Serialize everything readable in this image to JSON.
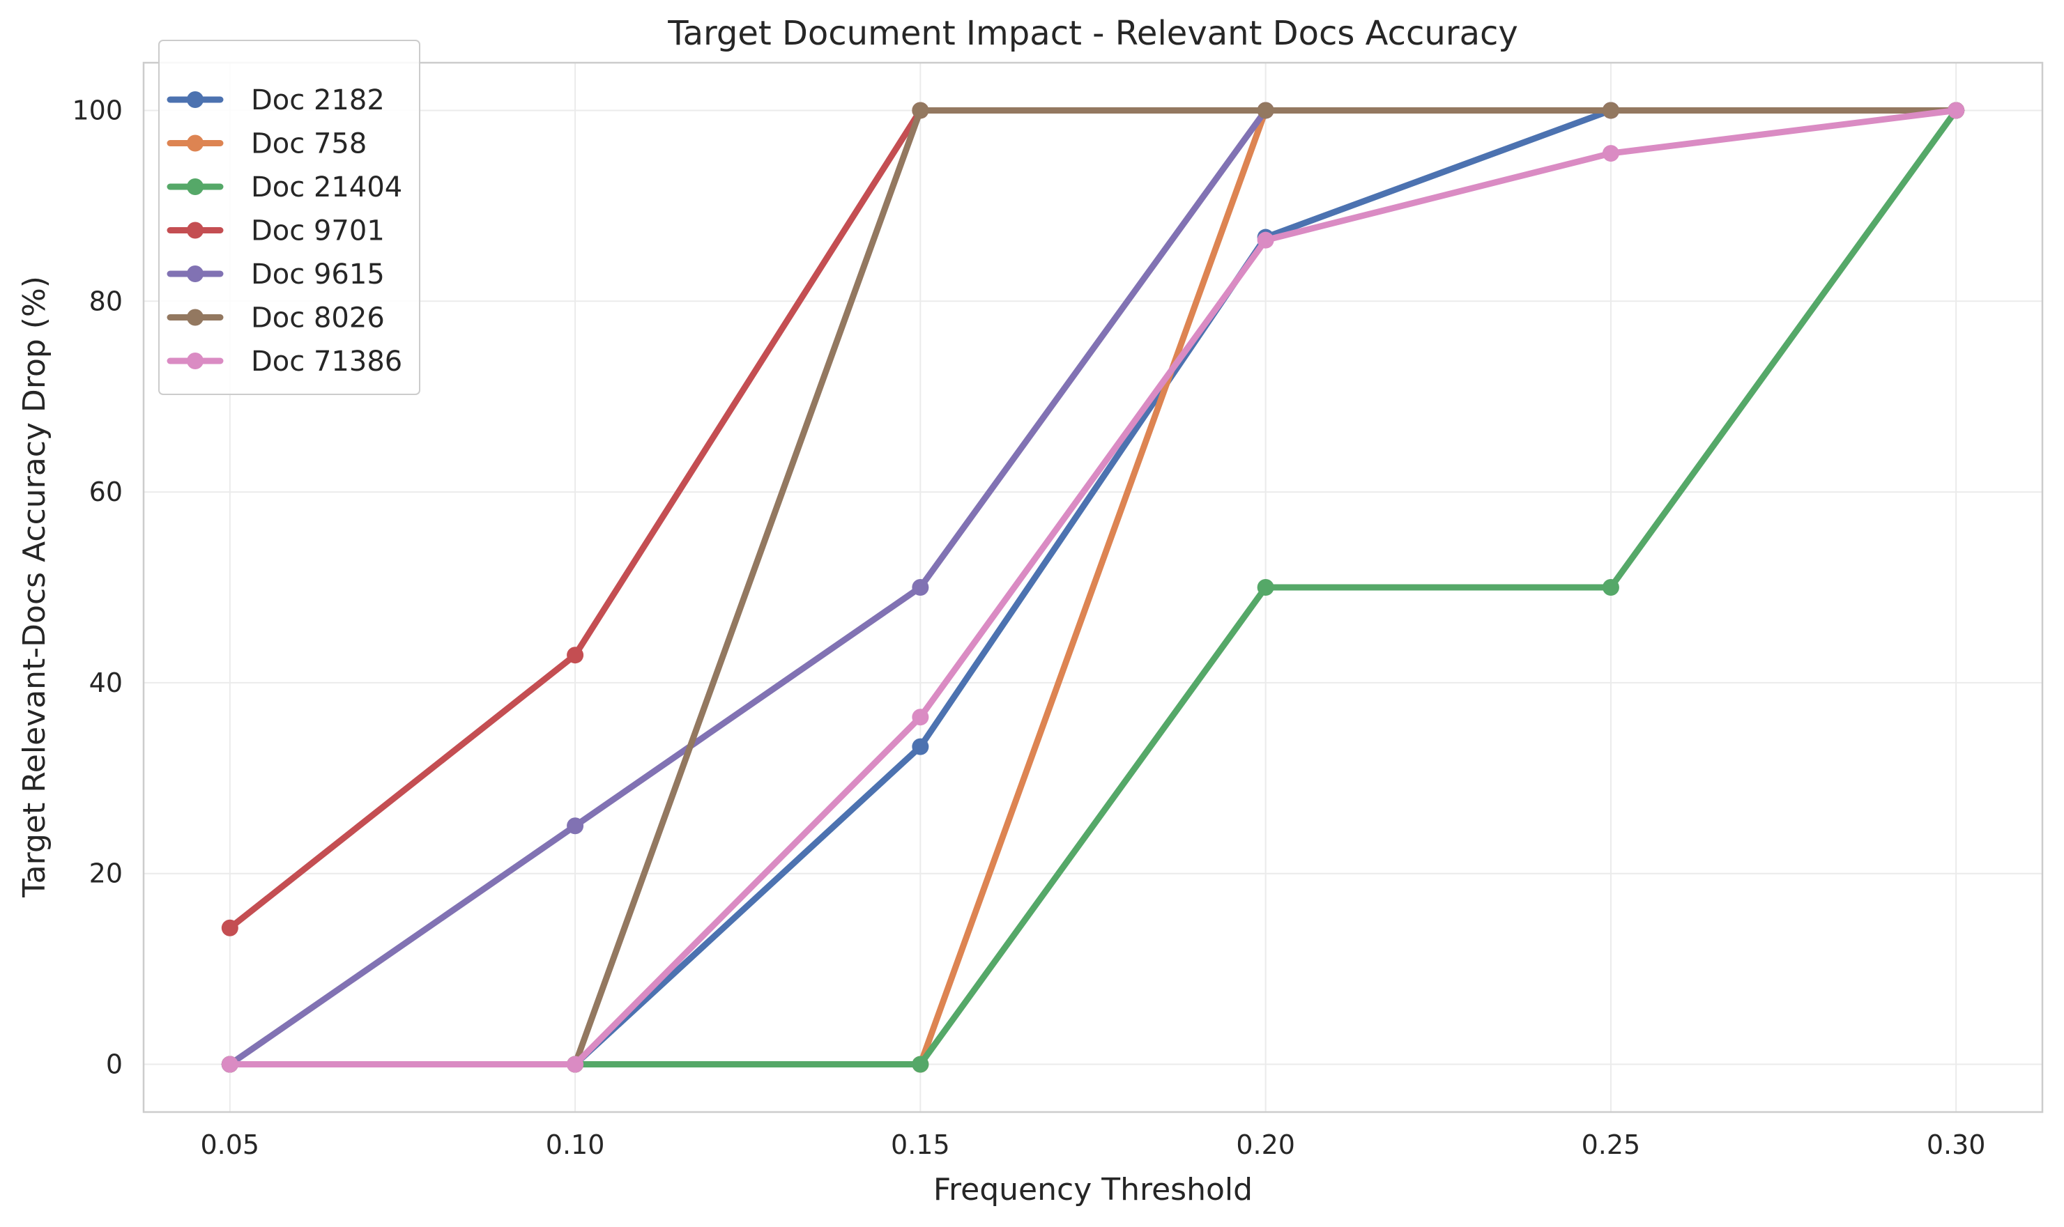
{
  "chart_data": {
    "type": "line",
    "title": "Target Document Impact - Relevant Docs Accuracy",
    "xlabel": "Frequency Threshold",
    "ylabel": "Target Relevant-Docs Accuracy Drop (%)",
    "x": [
      0.05,
      0.1,
      0.15,
      0.2,
      0.25,
      0.3
    ],
    "x_tick_labels": [
      "0.05",
      "0.10",
      "0.15",
      "0.20",
      "0.25",
      "0.30"
    ],
    "y_ticks": [
      0,
      20,
      40,
      60,
      80,
      100
    ],
    "xlim": [
      0.0375,
      0.3125
    ],
    "ylim": [
      -5,
      105
    ],
    "grid": true,
    "legend_position": "upper left",
    "series": [
      {
        "name": "Doc 2182",
        "color": "#4c72b0",
        "values": [
          0,
          0,
          33.3,
          86.7,
          100,
          100
        ]
      },
      {
        "name": "Doc 758",
        "color": "#dd8452",
        "values": [
          0,
          0,
          0,
          100,
          100,
          100
        ]
      },
      {
        "name": "Doc 21404",
        "color": "#55a868",
        "values": [
          0,
          0,
          0,
          50,
          50,
          100
        ]
      },
      {
        "name": "Doc 9701",
        "color": "#c44e52",
        "values": [
          14.3,
          42.9,
          100,
          100,
          100,
          100
        ]
      },
      {
        "name": "Doc 9615",
        "color": "#8172b3",
        "values": [
          0,
          25,
          50,
          100,
          100,
          100
        ]
      },
      {
        "name": "Doc 8026",
        "color": "#937860",
        "values": [
          0,
          0,
          100,
          100,
          100,
          100
        ]
      },
      {
        "name": "Doc 71386",
        "color": "#da8bc3",
        "values": [
          0,
          0,
          36.4,
          86.4,
          95.5,
          100
        ]
      }
    ]
  }
}
